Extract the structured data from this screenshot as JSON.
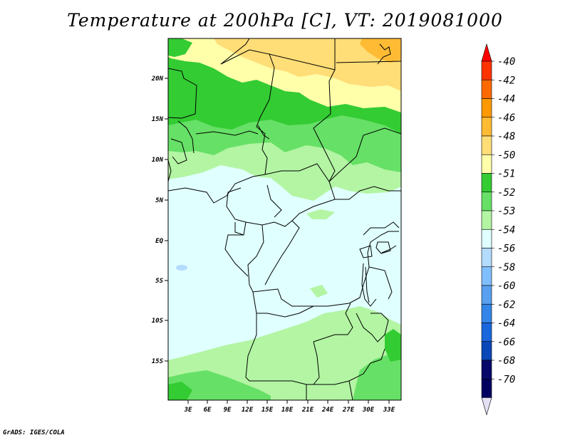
{
  "title": "Temperature at 200hPa [C], VT: 2019081000",
  "credit": "GrADS: IGES/COLA",
  "map": {
    "lat_ticks": [
      "20N",
      "15N",
      "10N",
      "5N",
      "EQ",
      "5S",
      "10S",
      "15S"
    ],
    "lon_ticks": [
      "3E",
      "6E",
      "9E",
      "12E",
      "15E",
      "18E",
      "21E",
      "24E",
      "27E",
      "30E",
      "33E"
    ]
  },
  "legend": {
    "labels": [
      "-40",
      "-42",
      "-44",
      "-46",
      "-48",
      "-50",
      "-51",
      "-52",
      "-53",
      "-54",
      "-56",
      "-58",
      "-60",
      "-62",
      "-64",
      "-66",
      "-68",
      "-70"
    ],
    "colors": [
      "#ff0000",
      "#ff3300",
      "#ff6a00",
      "#ff9900",
      "#ffbb33",
      "#ffdd77",
      "#ffffaa",
      "#33cc33",
      "#66e066",
      "#b3f5a3",
      "#e0ffff",
      "#b3dcff",
      "#80bfff",
      "#5aa0f0",
      "#3385e8",
      "#1a66dd",
      "#0a47b8",
      "#08086b",
      "#000060",
      "#e6e0f5"
    ]
  }
}
